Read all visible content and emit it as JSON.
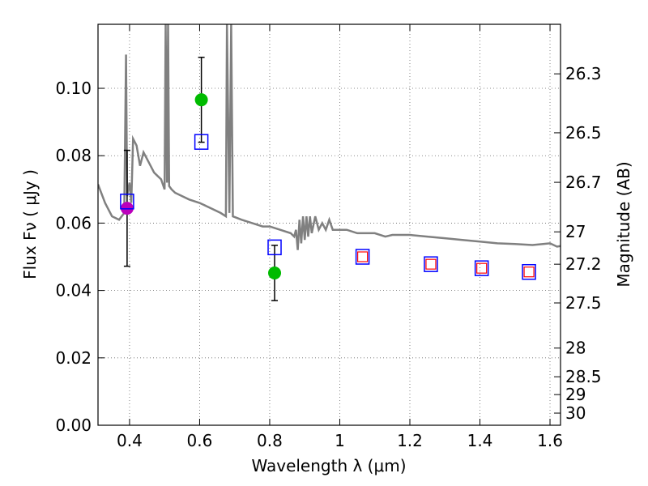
{
  "chart_data": {
    "type": "scatter",
    "xlabel": "Wavelength  λ (μm)",
    "ylabel": "Flux  Fν  ( μJy )",
    "y2label": "Magnitude (AB)",
    "xlim": [
      0.31,
      1.63
    ],
    "ylim": [
      0.0,
      0.119
    ],
    "grid": true,
    "x_ticks": [
      0.4,
      0.6,
      0.8,
      1.0,
      1.2,
      1.4,
      1.6
    ],
    "x_tick_labels": [
      "0.4",
      "0.6",
      "0.8",
      "1",
      "1.2",
      "1.4",
      "1.6"
    ],
    "y_ticks": [
      0.0,
      0.02,
      0.04,
      0.06,
      0.08,
      0.1
    ],
    "y_tick_labels": [
      "0.00",
      "0.02",
      "0.04",
      "0.06",
      "0.08",
      "0.10"
    ],
    "y2_ticks": [
      {
        "label": "26.3",
        "flux": 0.1043
      },
      {
        "label": "26.5",
        "flux": 0.0868
      },
      {
        "label": "26.7",
        "flux": 0.0721
      },
      {
        "label": "27",
        "flux": 0.0574
      },
      {
        "label": "27.2",
        "flux": 0.0478
      },
      {
        "label": "27.5",
        "flux": 0.0363
      },
      {
        "label": "28",
        "flux": 0.0229
      },
      {
        "label": "28.5",
        "flux": 0.0144
      },
      {
        "label": "29",
        "flux": 0.0091
      },
      {
        "label": "30",
        "flux": 0.0036
      }
    ],
    "colors": {
      "model": "#808080",
      "observed_green": "#00bb00",
      "observed_magenta": "#bb00bb",
      "model_band_blue": "#0000ff",
      "model_band_red": "#ff0000",
      "errorbar": "#000000",
      "grid": "#b0b0b0"
    },
    "series": [
      {
        "kind": "observed",
        "color": "green",
        "points": [
          {
            "x": 0.605,
            "y": 0.0966,
            "yerr_low": 0.0126,
            "yerr_high": 0.0126
          },
          {
            "x": 0.814,
            "y": 0.0452,
            "yerr_low": 0.0082,
            "yerr_high": 0.0082
          }
        ]
      },
      {
        "kind": "observed",
        "color": "magenta",
        "points": [
          {
            "x": 0.393,
            "y": 0.0644,
            "yerr_low": 0.0172,
            "yerr_high": 0.0172
          }
        ]
      },
      {
        "kind": "model-bands-blue",
        "points": [
          {
            "x": 0.393,
            "y": 0.0664
          },
          {
            "x": 0.605,
            "y": 0.0841
          },
          {
            "x": 0.814,
            "y": 0.0528
          },
          {
            "x": 1.065,
            "y": 0.05
          },
          {
            "x": 1.26,
            "y": 0.0478
          },
          {
            "x": 1.405,
            "y": 0.0466
          },
          {
            "x": 1.54,
            "y": 0.0455
          }
        ]
      },
      {
        "kind": "model-bands-red",
        "points": [
          {
            "x": 1.065,
            "y": 0.05
          },
          {
            "x": 1.26,
            "y": 0.0478
          },
          {
            "x": 1.405,
            "y": 0.0466
          },
          {
            "x": 1.54,
            "y": 0.0455
          }
        ]
      }
    ],
    "model_spectrum": [
      [
        0.31,
        0.0715
      ],
      [
        0.33,
        0.066
      ],
      [
        0.35,
        0.062
      ],
      [
        0.37,
        0.061
      ],
      [
        0.385,
        0.063
      ],
      [
        0.39,
        0.11
      ],
      [
        0.393,
        0.068
      ],
      [
        0.4,
        0.072
      ],
      [
        0.405,
        0.066
      ],
      [
        0.41,
        0.085
      ],
      [
        0.42,
        0.083
      ],
      [
        0.43,
        0.077
      ],
      [
        0.44,
        0.081
      ],
      [
        0.45,
        0.079
      ],
      [
        0.46,
        0.077
      ],
      [
        0.47,
        0.075
      ],
      [
        0.48,
        0.074
      ],
      [
        0.49,
        0.073
      ],
      [
        0.5,
        0.07
      ],
      [
        0.503,
        0.119
      ],
      [
        0.507,
        0.072
      ],
      [
        0.51,
        0.119
      ],
      [
        0.513,
        0.071
      ],
      [
        0.52,
        0.07
      ],
      [
        0.53,
        0.069
      ],
      [
        0.55,
        0.068
      ],
      [
        0.57,
        0.067
      ],
      [
        0.6,
        0.066
      ],
      [
        0.62,
        0.065
      ],
      [
        0.64,
        0.064
      ],
      [
        0.66,
        0.063
      ],
      [
        0.675,
        0.062
      ],
      [
        0.678,
        0.119
      ],
      [
        0.685,
        0.063
      ],
      [
        0.69,
        0.119
      ],
      [
        0.695,
        0.062
      ],
      [
        0.72,
        0.061
      ],
      [
        0.75,
        0.06
      ],
      [
        0.78,
        0.059
      ],
      [
        0.8,
        0.059
      ],
      [
        0.83,
        0.058
      ],
      [
        0.86,
        0.057
      ],
      [
        0.87,
        0.056
      ],
      [
        0.875,
        0.058
      ],
      [
        0.88,
        0.052
      ],
      [
        0.885,
        0.061
      ],
      [
        0.89,
        0.054
      ],
      [
        0.895,
        0.062
      ],
      [
        0.9,
        0.055
      ],
      [
        0.905,
        0.062
      ],
      [
        0.91,
        0.056
      ],
      [
        0.915,
        0.062
      ],
      [
        0.92,
        0.057
      ],
      [
        0.93,
        0.062
      ],
      [
        0.94,
        0.058
      ],
      [
        0.95,
        0.06
      ],
      [
        0.96,
        0.058
      ],
      [
        0.97,
        0.061
      ],
      [
        0.98,
        0.058
      ],
      [
        1.0,
        0.058
      ],
      [
        1.02,
        0.058
      ],
      [
        1.05,
        0.057
      ],
      [
        1.08,
        0.057
      ],
      [
        1.1,
        0.057
      ],
      [
        1.13,
        0.056
      ],
      [
        1.15,
        0.0565
      ],
      [
        1.18,
        0.0565
      ],
      [
        1.2,
        0.0565
      ],
      [
        1.25,
        0.056
      ],
      [
        1.3,
        0.0555
      ],
      [
        1.35,
        0.055
      ],
      [
        1.4,
        0.0545
      ],
      [
        1.45,
        0.054
      ],
      [
        1.5,
        0.0538
      ],
      [
        1.55,
        0.0535
      ],
      [
        1.58,
        0.0538
      ],
      [
        1.6,
        0.054
      ],
      [
        1.62,
        0.053
      ],
      [
        1.63,
        0.0532
      ]
    ]
  }
}
